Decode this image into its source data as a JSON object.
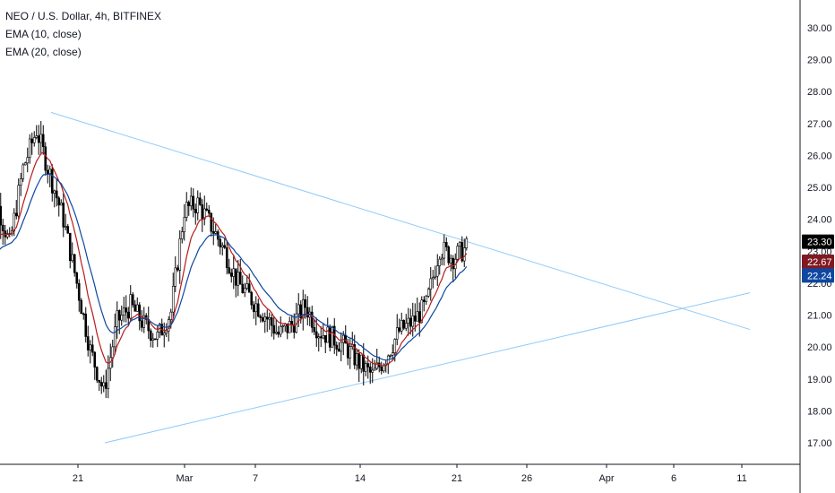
{
  "chart_data": {
    "type": "candlestick",
    "title": "NEO / U.S. Dollar, 4h, BITFINEX",
    "indicators": [
      {
        "label": "EMA (10, close)",
        "color": "#b71c1c"
      },
      {
        "label": "EMA (20, close)",
        "color": "#0d47a1"
      }
    ],
    "y_axis": {
      "ticks": [
        "17.00",
        "18.00",
        "19.00",
        "20.00",
        "21.00",
        "22.00",
        "23.00",
        "24.00",
        "25.00",
        "26.00",
        "27.00",
        "28.00",
        "29.00",
        "30.00"
      ],
      "range": [
        16.6,
        30.3
      ]
    },
    "x_axis": {
      "ticks": [
        "21",
        "Mar",
        "7",
        "14",
        "21",
        "26",
        "Apr",
        "6",
        "11"
      ],
      "range": [
        "Feb 14",
        "Apr 12"
      ]
    },
    "price_tags": [
      {
        "label": "23.30",
        "value": 23.3,
        "color": "#000000"
      },
      {
        "label": "22.67",
        "value": 22.67,
        "color": "#801922"
      },
      {
        "label": "22.24",
        "value": 22.24,
        "color": "#0d47a1"
      }
    ],
    "trendlines": [
      {
        "name": "upper",
        "from": {
          "date": "Feb 19",
          "price": 27.35
        },
        "to": {
          "date": "Apr 12",
          "price": 20.55
        }
      },
      {
        "name": "lower",
        "from": {
          "date": "Feb 23",
          "price": 17.0
        },
        "to": {
          "date": "Apr 12",
          "price": 21.7
        }
      }
    ],
    "trendline_color": "#90caf9",
    "candle_color": "#000000",
    "price_path": [
      [
        "Feb 14",
        21.9
      ],
      [
        "Feb 15",
        24.6
      ],
      [
        "Feb 16",
        23.2
      ],
      [
        "Feb 17",
        25.6
      ],
      [
        "Feb 18",
        26.8
      ],
      [
        "Feb 19",
        25.4
      ],
      [
        "Feb 20",
        24.0
      ],
      [
        "Feb 21",
        22.0
      ],
      [
        "Feb 22",
        19.9
      ],
      [
        "Feb 23",
        18.6
      ],
      [
        "Feb 24",
        20.8
      ],
      [
        "Feb 25",
        21.3
      ],
      [
        "Feb 26",
        20.7
      ],
      [
        "Feb 27",
        20.3
      ],
      [
        "Feb 28",
        21.1
      ],
      [
        "Mar 1",
        24.3
      ],
      [
        "Mar 2",
        24.5
      ],
      [
        "Mar 3",
        23.8
      ],
      [
        "Mar 4",
        23.0
      ],
      [
        "Mar 5",
        22.0
      ],
      [
        "Mar 6",
        21.5
      ],
      [
        "Mar 7",
        21.0
      ],
      [
        "Mar 8",
        20.4
      ],
      [
        "Mar 9",
        20.7
      ],
      [
        "Mar 10",
        21.3
      ],
      [
        "Mar 11",
        20.5
      ],
      [
        "Mar 12",
        20.3
      ],
      [
        "Mar 13",
        20.0
      ],
      [
        "Mar 14",
        19.5
      ],
      [
        "Mar 15",
        19.1
      ],
      [
        "Mar 16",
        19.7
      ],
      [
        "Mar 17",
        20.5
      ],
      [
        "Mar 18",
        20.8
      ],
      [
        "Mar 19",
        21.3
      ],
      [
        "Mar 20",
        23.1
      ],
      [
        "Mar 21",
        22.8
      ],
      [
        "Mar 22",
        23.1
      ]
    ]
  }
}
